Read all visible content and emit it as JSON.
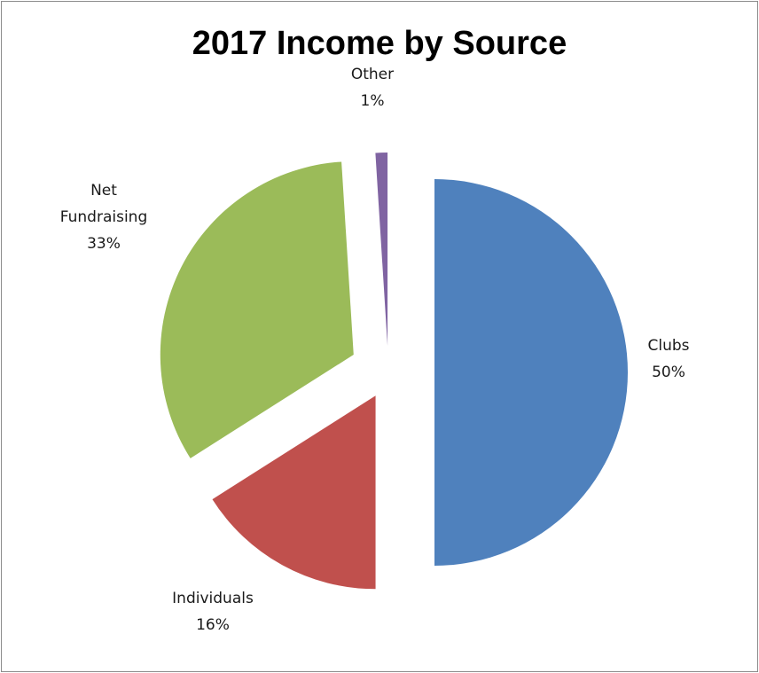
{
  "chart_data": {
    "type": "pie",
    "title": "2017 Income by Source",
    "slices": [
      {
        "name": "Clubs",
        "value": 50,
        "label": "50%",
        "color": "#4F81BD"
      },
      {
        "name": "Individuals",
        "value": 16,
        "label": "16%",
        "color": "#C0504D"
      },
      {
        "name": "Net Fundraising",
        "value": 33,
        "label": "33%",
        "color": "#9BBB59"
      },
      {
        "name": "Other",
        "value": 1,
        "label": "1%",
        "color": "#8064A2"
      }
    ],
    "exploded": true,
    "legend": "none"
  }
}
